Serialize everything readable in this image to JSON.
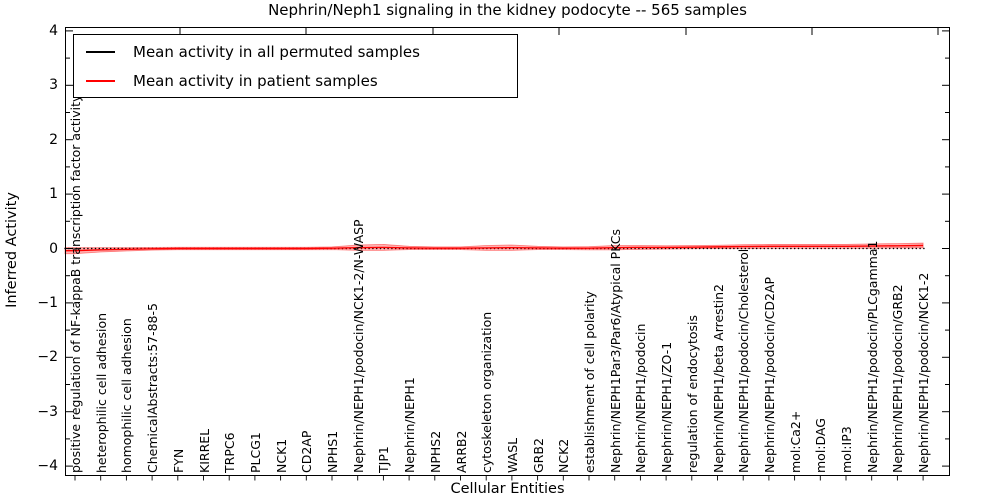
{
  "title": "Nephrin/Neph1 signaling in the kidney podocyte -- 565 samples",
  "axes": {
    "ylabel": "Inferred Activity",
    "xlabel": "Cellular Entities"
  },
  "legend": {
    "position": "upper left",
    "entries": [
      {
        "label": "Mean activity in all permuted samples",
        "color": "#000000"
      },
      {
        "label": "Mean activity in patient samples",
        "color": "#ff0000"
      }
    ]
  },
  "chart_data": {
    "type": "line",
    "title": "Nephrin/Neph1 signaling in the kidney podocyte -- 565 samples",
    "xlabel": "Cellular Entities",
    "ylabel": "Inferred Activity",
    "ylim": [
      -4,
      4
    ],
    "yticklabels": [
      "4",
      "3",
      "2",
      "1",
      "0",
      "−1",
      "−2",
      "−3",
      "−4"
    ],
    "ytick_values": [
      4,
      3,
      2,
      1,
      0,
      -1,
      -2,
      -3,
      -4
    ],
    "grid": false,
    "legend_position": "upper left",
    "categories": [
      "positive regulation of NF-kappaB transcription factor activity",
      "heterophilic cell adhesion",
      "homophilic cell adhesion",
      "ChemicalAbstracts:57-88-5",
      "FYN",
      "KIRREL",
      "TRPC6",
      "PLCG1",
      "NCK1",
      "CD2AP",
      "NPHS1",
      "Nephrin/NEPH1/podocin/NCK1-2/N-WASP",
      "TJP1",
      "Nephrin/NEPH1",
      "NPHS2",
      "ARRB2",
      "cytoskeleton organization",
      "WASL",
      "GRB2",
      "NCK2",
      "establishment of cell polarity",
      "Nephrin/NEPH1Par3/Par6/Atypical PKCs",
      "Nephrin/NEPH1/podocin",
      "Nephrin/NEPH1/ZO-1",
      "regulation of endocytosis",
      "Nephrin/NEPH1/beta Arrestin2",
      "Nephrin/NEPH1/podocin/Cholesterol",
      "Nephrin/NEPH1/podocin/CD2AP",
      "mol:Ca2+",
      "mol:DAG",
      "mol:IP3",
      "Nephrin/NEPH1/podocin/PLCgamma1",
      "Nephrin/NEPH1/podocin/GRB2",
      "Nephrin/NEPH1/podocin/NCK1-2"
    ],
    "series": [
      {
        "name": "Mean activity in all permuted samples",
        "color": "#000000",
        "style": "dotted",
        "values": [
          0,
          0,
          0,
          0,
          0,
          0,
          0,
          0,
          0,
          0,
          0,
          0,
          0,
          0,
          0,
          0,
          0,
          0,
          0,
          0,
          0,
          0,
          0,
          0,
          0,
          0,
          0,
          0,
          0,
          0,
          0,
          0,
          0,
          0
        ]
      },
      {
        "name": "Mean activity in patient samples",
        "color": "#ff0000",
        "style": "solid",
        "values": [
          -0.04,
          -0.025,
          -0.015,
          -0.005,
          0,
          0,
          0,
          0,
          0,
          0,
          0.005,
          0.015,
          0.02,
          0.01,
          0.005,
          0.005,
          0.01,
          0.015,
          0.01,
          0.005,
          0.005,
          0.015,
          0.02,
          0.02,
          0.025,
          0.03,
          0.035,
          0.04,
          0.04,
          0.04,
          0.04,
          0.045,
          0.05,
          0.055
        ],
        "band_halfwidth": [
          0.055,
          0.04,
          0.03,
          0.025,
          0.022,
          0.022,
          0.022,
          0.022,
          0.022,
          0.022,
          0.025,
          0.05,
          0.055,
          0.03,
          0.025,
          0.025,
          0.045,
          0.05,
          0.03,
          0.025,
          0.03,
          0.04,
          0.035,
          0.03,
          0.03,
          0.03,
          0.035,
          0.035,
          0.035,
          0.035,
          0.035,
          0.04,
          0.04,
          0.045
        ],
        "band_color": "#ff0000"
      }
    ]
  }
}
